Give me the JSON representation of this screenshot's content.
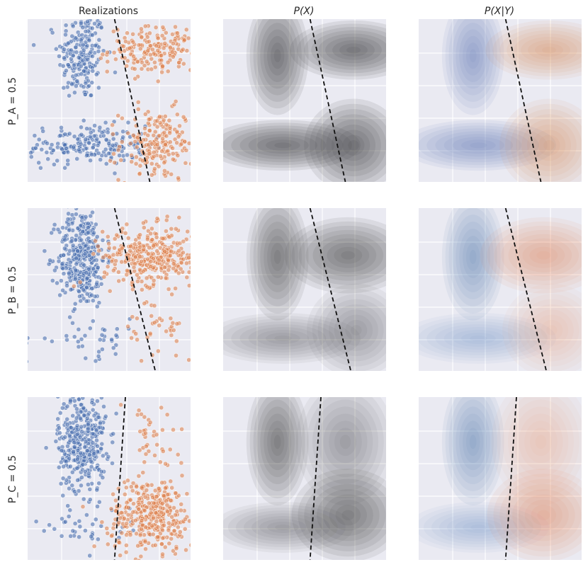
{
  "figure": {
    "column_titles": [
      "Realizations",
      "P(X)",
      "P(X|Y)"
    ],
    "row_labels": [
      "P_A = 0.5",
      "P_B = 0.5",
      "P_C = 0.5"
    ]
  },
  "colors": {
    "panel_background": "#eaeaf2",
    "class_0": "#4c72b0",
    "class_1": "#dd8452",
    "density_gray": "#3c3c3c",
    "boundary": "#111111"
  },
  "chart_data": [
    {
      "type": "scatter",
      "title": "Realizations",
      "row": "P_A = 0.5",
      "grid": true,
      "boundary_line": [
        [
          -1.4,
          1.0
        ],
        [
          -0.75,
          -1.0
        ]
      ],
      "series": [
        {
          "class": 0,
          "color": "#4c72b0",
          "clusters": [
            {
              "center": [
                -2.0,
                0.55
              ],
              "spread": [
                0.22,
                0.28
              ],
              "n": 200
            },
            {
              "center": [
                -1.9,
                -0.55
              ],
              "spread": [
                0.55,
                0.12
              ],
              "n": 200
            }
          ]
        },
        {
          "class": 1,
          "color": "#dd8452",
          "clusters": [
            {
              "center": [
                -0.6,
                0.62
              ],
              "spread": [
                0.45,
                0.14
              ],
              "n": 200
            },
            {
              "center": [
                -0.6,
                -0.55
              ],
              "spread": [
                0.35,
                0.22
              ],
              "n": 200
            }
          ]
        }
      ]
    },
    {
      "type": "heatmap",
      "title": "P(X)",
      "row": "P_A = 0.5",
      "grid": true,
      "boundary_line": [
        [
          -1.4,
          1.0
        ],
        [
          -0.75,
          -1.0
        ]
      ],
      "components": [
        {
          "center": [
            -2.0,
            0.55
          ],
          "spread": [
            0.22,
            0.28
          ],
          "weight": 1
        },
        {
          "center": [
            -1.9,
            -0.55
          ],
          "spread": [
            0.55,
            0.12
          ],
          "weight": 1
        },
        {
          "center": [
            -0.6,
            0.62
          ],
          "spread": [
            0.45,
            0.14
          ],
          "weight": 1
        },
        {
          "center": [
            -0.6,
            -0.55
          ],
          "spread": [
            0.35,
            0.22
          ],
          "weight": 1
        }
      ]
    },
    {
      "type": "heatmap",
      "title": "P(X|Y)",
      "row": "P_A = 0.5",
      "grid": true,
      "boundary_line": [
        [
          -1.4,
          1.0
        ],
        [
          -0.75,
          -1.0
        ]
      ],
      "classes": [
        {
          "class": 0,
          "color": "#4c72b0",
          "components": [
            {
              "center": [
                -2.0,
                0.55
              ],
              "spread": [
                0.22,
                0.28
              ],
              "weight": 1
            },
            {
              "center": [
                -1.9,
                -0.55
              ],
              "spread": [
                0.55,
                0.12
              ],
              "weight": 1
            }
          ]
        },
        {
          "class": 1,
          "color": "#dd8452",
          "components": [
            {
              "center": [
                -0.6,
                0.62
              ],
              "spread": [
                0.45,
                0.14
              ],
              "weight": 1
            },
            {
              "center": [
                -0.6,
                -0.55
              ],
              "spread": [
                0.35,
                0.22
              ],
              "weight": 1
            }
          ]
        }
      ]
    },
    {
      "type": "scatter",
      "title": "Realizations",
      "row": "P_B = 0.5",
      "grid": true,
      "boundary_line": [
        [
          -1.4,
          1.0
        ],
        [
          -0.65,
          -1.0
        ]
      ],
      "series": [
        {
          "class": 0,
          "color": "#4c72b0",
          "clusters": [
            {
              "center": [
                -2.0,
                0.4
              ],
              "spread": [
                0.22,
                0.3
              ],
              "n": 360
            },
            {
              "center": [
                -1.9,
                -0.6
              ],
              "spread": [
                0.55,
                0.12
              ],
              "n": 40
            }
          ]
        },
        {
          "class": 1,
          "color": "#dd8452",
          "clusters": [
            {
              "center": [
                -0.7,
                0.42
              ],
              "spread": [
                0.45,
                0.18
              ],
              "n": 360
            },
            {
              "center": [
                -0.55,
                -0.5
              ],
              "spread": [
                0.35,
                0.22
              ],
              "n": 40
            }
          ]
        }
      ]
    },
    {
      "type": "heatmap",
      "title": "P(X)",
      "row": "P_B = 0.5",
      "grid": true,
      "boundary_line": [
        [
          -1.4,
          1.0
        ],
        [
          -0.65,
          -1.0
        ]
      ],
      "components": [
        {
          "center": [
            -2.0,
            0.4
          ],
          "spread": [
            0.22,
            0.3
          ],
          "weight": 0.9
        },
        {
          "center": [
            -1.9,
            -0.6
          ],
          "spread": [
            0.55,
            0.12
          ],
          "weight": 0.1
        },
        {
          "center": [
            -0.7,
            0.42
          ],
          "spread": [
            0.45,
            0.18
          ],
          "weight": 0.9
        },
        {
          "center": [
            -0.55,
            -0.5
          ],
          "spread": [
            0.35,
            0.22
          ],
          "weight": 0.1
        }
      ]
    },
    {
      "type": "heatmap",
      "title": "P(X|Y)",
      "row": "P_B = 0.5",
      "grid": true,
      "boundary_line": [
        [
          -1.4,
          1.0
        ],
        [
          -0.65,
          -1.0
        ]
      ],
      "classes": [
        {
          "class": 0,
          "color": "#4c72b0",
          "components": [
            {
              "center": [
                -2.0,
                0.4
              ],
              "spread": [
                0.22,
                0.3
              ],
              "weight": 0.9
            },
            {
              "center": [
                -1.9,
                -0.6
              ],
              "spread": [
                0.55,
                0.12
              ],
              "weight": 0.1
            }
          ]
        },
        {
          "class": 1,
          "color": "#dd8452",
          "components": [
            {
              "center": [
                -0.7,
                0.42
              ],
              "spread": [
                0.45,
                0.18
              ],
              "weight": 0.9
            },
            {
              "center": [
                -0.55,
                -0.5
              ],
              "spread": [
                0.35,
                0.22
              ],
              "weight": 0.1
            }
          ]
        }
      ]
    },
    {
      "type": "scatter",
      "title": "Realizations",
      "row": "P_C = 0.5",
      "grid": true,
      "boundary_line": [
        [
          -1.2,
          1.0
        ],
        [
          -1.4,
          -1.0
        ]
      ],
      "series": [
        {
          "class": 0,
          "color": "#4c72b0",
          "clusters": [
            {
              "center": [
                -2.0,
                0.45
              ],
              "spread": [
                0.22,
                0.3
              ],
              "n": 360
            },
            {
              "center": [
                -1.9,
                -0.6
              ],
              "spread": [
                0.5,
                0.12
              ],
              "n": 40
            }
          ]
        },
        {
          "class": 1,
          "color": "#dd8452",
          "clusters": [
            {
              "center": [
                -0.7,
                -0.45
              ],
              "spread": [
                0.4,
                0.22
              ],
              "n": 360
            },
            {
              "center": [
                -0.75,
                0.45
              ],
              "spread": [
                0.35,
                0.3
              ],
              "n": 40
            }
          ]
        }
      ]
    },
    {
      "type": "heatmap",
      "title": "P(X)",
      "row": "P_C = 0.5",
      "grid": true,
      "boundary_line": [
        [
          -1.2,
          1.0
        ],
        [
          -1.4,
          -1.0
        ]
      ],
      "components": [
        {
          "center": [
            -2.0,
            0.45
          ],
          "spread": [
            0.22,
            0.3
          ],
          "weight": 0.9
        },
        {
          "center": [
            -1.9,
            -0.6
          ],
          "spread": [
            0.5,
            0.12
          ],
          "weight": 0.1
        },
        {
          "center": [
            -0.7,
            -0.45
          ],
          "spread": [
            0.4,
            0.22
          ],
          "weight": 0.9
        },
        {
          "center": [
            -0.75,
            0.45
          ],
          "spread": [
            0.35,
            0.3
          ],
          "weight": 0.1
        }
      ]
    },
    {
      "type": "heatmap",
      "title": "P(X|Y)",
      "row": "P_C = 0.5",
      "grid": true,
      "boundary_line": [
        [
          -1.2,
          1.0
        ],
        [
          -1.4,
          -1.0
        ]
      ],
      "classes": [
        {
          "class": 0,
          "color": "#4c72b0",
          "components": [
            {
              "center": [
                -2.0,
                0.45
              ],
              "spread": [
                0.22,
                0.3
              ],
              "weight": 0.9
            },
            {
              "center": [
                -1.9,
                -0.6
              ],
              "spread": [
                0.5,
                0.12
              ],
              "weight": 0.1
            }
          ]
        },
        {
          "class": 1,
          "color": "#dd8452",
          "components": [
            {
              "center": [
                -0.7,
                -0.45
              ],
              "spread": [
                0.4,
                0.22
              ],
              "weight": 0.9
            },
            {
              "center": [
                -0.75,
                0.45
              ],
              "spread": [
                0.35,
                0.3
              ],
              "weight": 0.1
            }
          ]
        }
      ]
    }
  ]
}
